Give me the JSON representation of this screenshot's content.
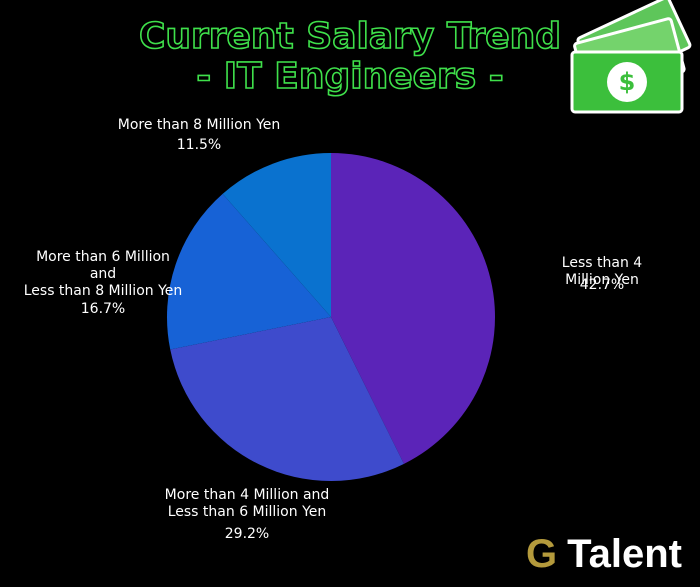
{
  "chart_data": {
    "type": "pie",
    "title": "Current Salary Trend",
    "subtitle": "- IT Engineers -",
    "categories": [
      "Less than 4 Million Yen",
      "More than 4 Million and\nLess than 6 Million Yen",
      "More than 6 Million\nand\nLess than 8 Million Yen",
      "More than 8 Million Yen"
    ],
    "values": [
      42.7,
      29.2,
      16.7,
      11.5
    ],
    "value_labels": [
      "42.7%",
      "29.2%",
      "16.7%",
      "11.5%"
    ],
    "colors": [
      "#5b24b8",
      "#3e4bcc",
      "#1762d6",
      "#0a72cf"
    ]
  },
  "brand": {
    "initial": "G",
    "name": "Talent"
  },
  "icon_symbol": "$"
}
